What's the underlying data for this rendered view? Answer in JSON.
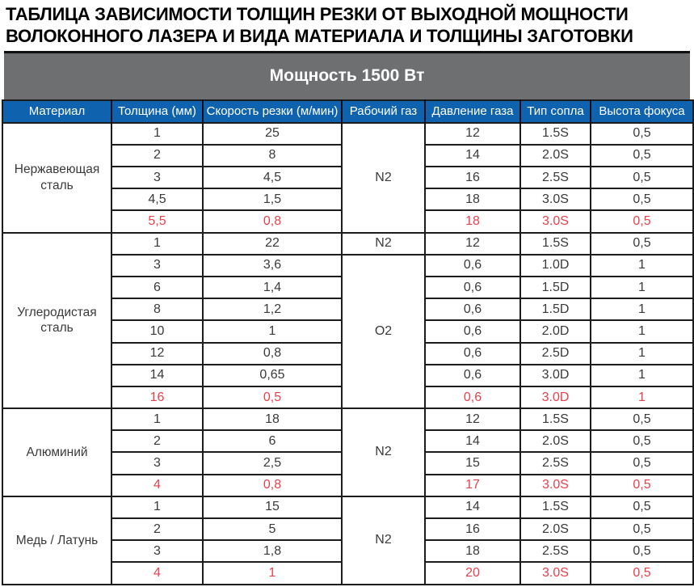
{
  "page_title": {
    "line1": "ТАБЛИЦА ЗАВИСИМОСТИ ТОЛЩИН РЕЗКИ ОТ ВЫХОДНОЙ МОЩНОСТИ",
    "line2": "ВОЛОКОННОГО ЛАЗЕРА И ВИДА МАТЕРИАЛА И ТОЛЩИНЫ ЗАГОТОВКИ"
  },
  "power_band": {
    "label": "Мощность 1500 Вт"
  },
  "colors": {
    "header_blue": "#0f63ae",
    "band_gray": "#6e6f71",
    "limit_red": "#e8414c",
    "body_text": "#3a3a3c",
    "grid_border": "#1c1c1c"
  },
  "table": {
    "columns": [
      "Материал",
      "Толщина (мм)",
      "Скорость резки (м/мин)",
      "Рабочий газ",
      "Давление газа",
      "Тип сопла",
      "Высота фокуса"
    ],
    "sections": [
      {
        "material": "Нержавеющая сталь",
        "gas_spans": [
          {
            "gas": "N2",
            "rows": 5
          }
        ],
        "rows": [
          {
            "thickness": "1",
            "speed": "25",
            "pressure": "12",
            "nozzle": "1.5S",
            "focus": "0,5",
            "limit": false
          },
          {
            "thickness": "2",
            "speed": "8",
            "pressure": "14",
            "nozzle": "2.0S",
            "focus": "0,5",
            "limit": false
          },
          {
            "thickness": "3",
            "speed": "4,5",
            "pressure": "16",
            "nozzle": "2.5S",
            "focus": "0,5",
            "limit": false
          },
          {
            "thickness": "4,5",
            "speed": "1,5",
            "pressure": "18",
            "nozzle": "3.0S",
            "focus": "0,5",
            "limit": false
          },
          {
            "thickness": "5,5",
            "speed": "0,8",
            "pressure": "18",
            "nozzle": "3.0S",
            "focus": "0,5",
            "limit": true
          }
        ]
      },
      {
        "material": "Углеродистая сталь",
        "gas_spans": [
          {
            "gas": "N2",
            "rows": 1
          },
          {
            "gas": "O2",
            "rows": 7
          }
        ],
        "rows": [
          {
            "thickness": "1",
            "speed": "22",
            "pressure": "12",
            "nozzle": "1.5S",
            "focus": "0,5",
            "limit": false
          },
          {
            "thickness": "3",
            "speed": "3,6",
            "pressure": "0,6",
            "nozzle": "1.0D",
            "focus": "1",
            "limit": false
          },
          {
            "thickness": "6",
            "speed": "1,4",
            "pressure": "0,6",
            "nozzle": "1.5D",
            "focus": "1",
            "limit": false
          },
          {
            "thickness": "8",
            "speed": "1,2",
            "pressure": "0,6",
            "nozzle": "1.5D",
            "focus": "1",
            "limit": false
          },
          {
            "thickness": "10",
            "speed": "1",
            "pressure": "0,6",
            "nozzle": "2.0D",
            "focus": "1",
            "limit": false
          },
          {
            "thickness": "12",
            "speed": "0,8",
            "pressure": "0,6",
            "nozzle": "2.5D",
            "focus": "1",
            "limit": false
          },
          {
            "thickness": "14",
            "speed": "0,65",
            "pressure": "0,6",
            "nozzle": "3.0D",
            "focus": "1",
            "limit": false
          },
          {
            "thickness": "16",
            "speed": "0,5",
            "pressure": "0,6",
            "nozzle": "3.0D",
            "focus": "1",
            "limit": true
          }
        ]
      },
      {
        "material": "Алюминий",
        "gas_spans": [
          {
            "gas": "N2",
            "rows": 4
          }
        ],
        "rows": [
          {
            "thickness": "1",
            "speed": "18",
            "pressure": "12",
            "nozzle": "1.5S",
            "focus": "0,5",
            "limit": false
          },
          {
            "thickness": "2",
            "speed": "6",
            "pressure": "14",
            "nozzle": "2.0S",
            "focus": "0,5",
            "limit": false
          },
          {
            "thickness": "3",
            "speed": "2,5",
            "pressure": "15",
            "nozzle": "2.5S",
            "focus": "0,5",
            "limit": false
          },
          {
            "thickness": "4",
            "speed": "0,8",
            "pressure": "17",
            "nozzle": "3.0S",
            "focus": "0,5",
            "limit": true
          }
        ]
      },
      {
        "material": "Медь / Латунь",
        "gas_spans": [
          {
            "gas": "N2",
            "rows": 4
          }
        ],
        "rows": [
          {
            "thickness": "1",
            "speed": "15",
            "pressure": "14",
            "nozzle": "1.5S",
            "focus": "0,5",
            "limit": false
          },
          {
            "thickness": "2",
            "speed": "5",
            "pressure": "16",
            "nozzle": "2.0S",
            "focus": "0,5",
            "limit": false
          },
          {
            "thickness": "3",
            "speed": "1,8",
            "pressure": "18",
            "nozzle": "2.5S",
            "focus": "0,5",
            "limit": false
          },
          {
            "thickness": "4",
            "speed": "1",
            "pressure": "20",
            "nozzle": "3.0S",
            "focus": "0,5",
            "limit": true
          }
        ]
      }
    ]
  }
}
